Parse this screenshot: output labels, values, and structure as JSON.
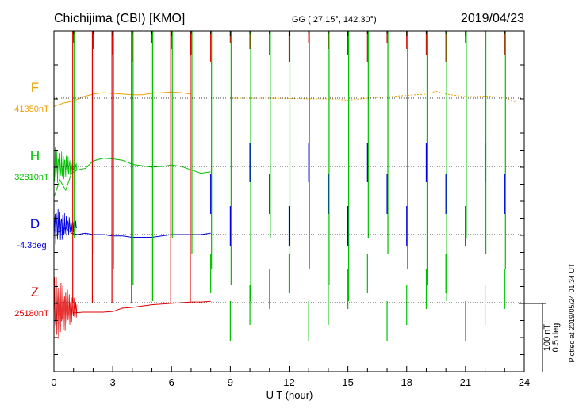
{
  "header": {
    "station": "Chichijima (CBI)  [KMO]",
    "coords": "GG ( 27.15°, 142.30°)",
    "date": "2019/04/23"
  },
  "chart_data": {
    "type": "line",
    "xlabel": "U T (hour)",
    "xlim": [
      0,
      24
    ],
    "x_ticks": [
      "0",
      "3",
      "6",
      "9",
      "12",
      "15",
      "18",
      "21",
      "24"
    ],
    "scale_note": [
      "100 nT",
      "0.5 deg"
    ],
    "plotted_note": "Plotted at 2019/05/24 01:34 UT",
    "components": [
      {
        "letter": "F",
        "base_label": "41350nT",
        "color": "#f0a000",
        "x": [
          0,
          0.5,
          1,
          1.5,
          2,
          2.5,
          3,
          3.5,
          4,
          4.5,
          5,
          5.5,
          6,
          6.5,
          7
        ],
        "y": [
          41338,
          41343,
          41346,
          41352,
          41356,
          41358,
          41357,
          41356,
          41355,
          41355,
          41357,
          41358,
          41359,
          41358,
          41356
        ],
        "late_x": [
          9,
          11,
          13,
          14,
          15,
          16,
          17,
          18,
          19,
          19.5,
          20,
          21,
          22,
          23,
          23.6
        ],
        "late_y": [
          41350,
          41350,
          41349,
          41349,
          41347,
          41350,
          41352,
          41354,
          41356,
          41360,
          41356,
          41352,
          41353,
          41351,
          41344
        ]
      },
      {
        "letter": "H",
        "base_label": "32810nT",
        "color": "#00c000",
        "x": [
          0,
          0.3,
          0.6,
          0.9,
          1.2,
          1.6,
          2,
          2.5,
          3,
          3.5,
          4,
          4.5,
          5,
          5.5,
          6,
          6.5,
          7,
          7.5,
          8
        ],
        "y": [
          32765,
          32790,
          32775,
          32800,
          32805,
          32807,
          32818,
          32822,
          32821,
          32819,
          32813,
          32811,
          32809,
          32810,
          32812,
          32810,
          32805,
          32800,
          32802
        ]
      },
      {
        "letter": "D",
        "base_label": "-4.3deg",
        "color": "#0000e0",
        "x": [
          0,
          0.3,
          0.6,
          0.9,
          1.2,
          1.6,
          2,
          2.5,
          3,
          3.5,
          4,
          4.5,
          5,
          5.5,
          6,
          6.5,
          7,
          7.5,
          8
        ],
        "y": [
          -4.27,
          -4.28,
          -4.25,
          -4.29,
          -4.3,
          -4.29,
          -4.3,
          -4.3,
          -4.31,
          -4.31,
          -4.32,
          -4.32,
          -4.32,
          -4.31,
          -4.3,
          -4.3,
          -4.3,
          -4.3,
          -4.29
        ]
      },
      {
        "letter": "Z",
        "base_label": "25180nT",
        "color": "#e00000",
        "x": [
          1.0,
          1.5,
          2,
          2.5,
          3,
          3.5,
          4,
          4.5,
          5,
          5.5,
          6,
          6.5,
          7,
          7.5,
          8
        ],
        "y": [
          25165,
          25166,
          25166,
          25166,
          25167,
          25172,
          25173,
          25175,
          25177,
          25178,
          25179,
          25180,
          25181,
          25181,
          25182
        ]
      }
    ],
    "data_gaps": [
      1,
      2,
      3,
      4,
      5,
      6,
      7,
      8,
      9,
      10,
      11,
      12,
      13,
      14,
      15,
      16,
      17,
      18,
      19,
      20,
      21,
      22,
      23
    ]
  }
}
